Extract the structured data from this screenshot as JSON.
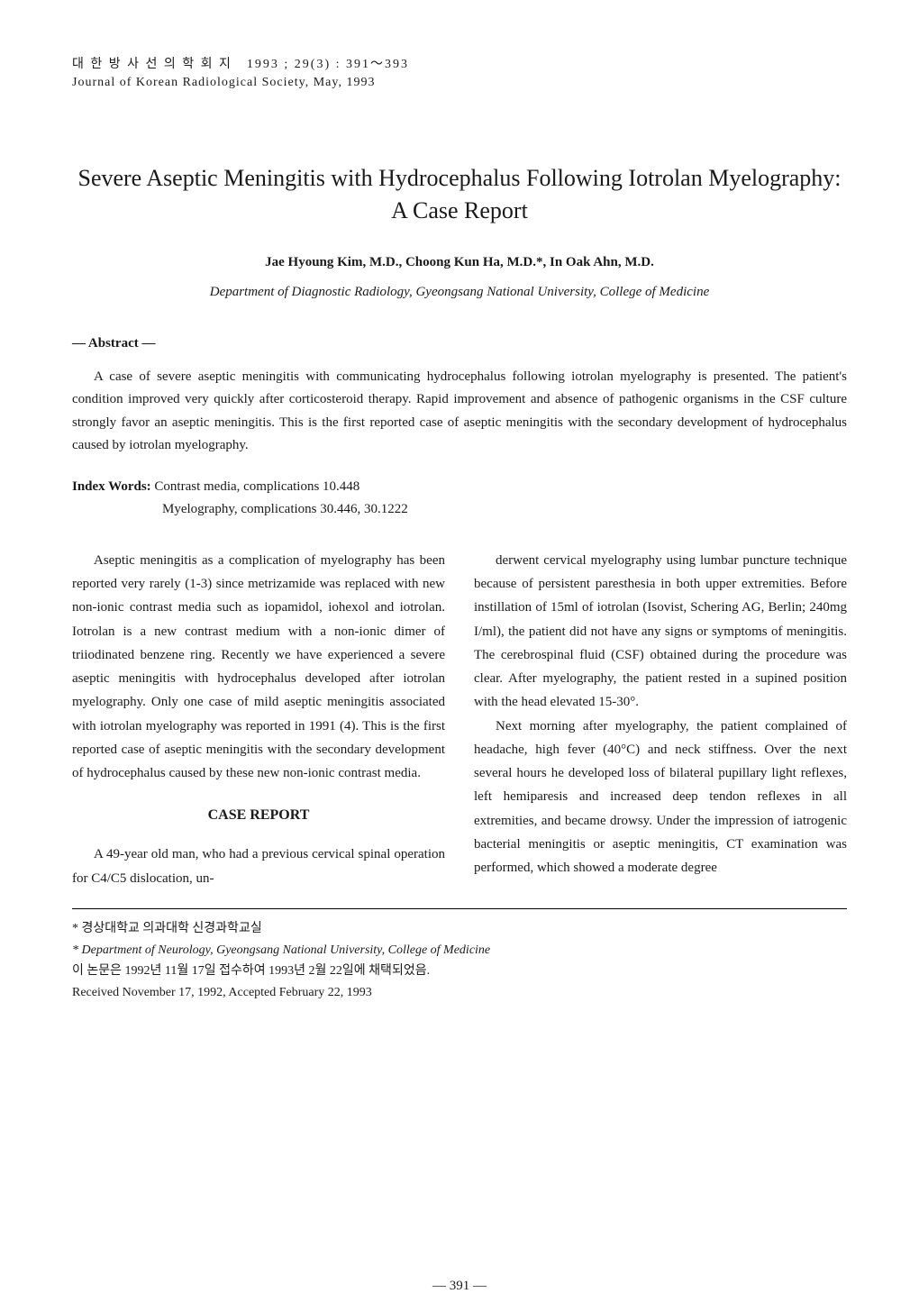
{
  "header": {
    "korean_line": "대 한 방 사 선 의 학 회 지　1993 ; 29(3) : 391～393",
    "english_line": "Journal of Korean Radiological Society, May, 1993"
  },
  "title": "Severe Aseptic Meningitis with Hydrocephalus Following Iotrolan Myelography: A Case Report",
  "authors": "Jae Hyoung Kim, M.D., Choong Kun Ha, M.D.*, In Oak Ahn, M.D.",
  "department": "Department of Diagnostic Radiology, Gyeongsang National University, College of Medicine",
  "abstract": {
    "label": "— Abstract —",
    "text": "A case of severe aseptic meningitis with communicating hydrocephalus following iotrolan myelography is presented. The patient's condition improved very quickly after corticosteroid therapy. Rapid improvement and absence of pathogenic organisms in the CSF culture strongly favor an aseptic meningitis. This is the first reported case of aseptic meningitis with the secondary development of hydrocephalus caused by iotrolan myelography."
  },
  "index_words": {
    "label": "Index Words:",
    "line1": " Contrast media, complications 10.448",
    "line2": "Myelography, complications 30.446, 30.1222"
  },
  "body": {
    "left_col": {
      "para1": "Aseptic meningitis as a complication of myelography has been reported very rarely (1-3) since metrizamide was replaced with new non-ionic contrast media such as iopamidol, iohexol and iotrolan. Iotrolan is a new contrast medium with a non-ionic dimer of triiodinated benzene ring. Recently we have experienced a severe aseptic meningitis with hydrocephalus developed after iotrolan myelography. Only one case of mild aseptic meningitis associated with iotrolan myelography was reported in 1991 (4). This is the first reported case of aseptic meningitis with the secondary development of hydrocephalus caused by these new non-ionic contrast media.",
      "section_heading": "CASE REPORT",
      "para2": "A 49-year old man, who had a previous cervical spinal operation for C4/C5 dislocation, un-"
    },
    "right_col": {
      "para1": "derwent cervical myelography using lumbar puncture technique because of persistent paresthesia in both upper extremities. Before instillation of 15ml of iotrolan (Isovist, Schering AG, Berlin; 240mg I/ml), the patient did not have any signs or symptoms of meningitis. The cerebrospinal fluid (CSF) obtained during the procedure was clear. After myelography, the patient rested in a supined position with the head elevated 15-30°.",
      "para2": "Next morning after myelography, the patient complained of headache, high fever (40°C) and neck stiffness. Over the next several hours he developed loss of bilateral pupillary light reflexes, left hemiparesis and increased deep tendon reflexes in all extremities, and became drowsy. Under the impression of iatrogenic bacterial meningitis or aseptic meningitis, CT examination was performed, which showed a moderate degree"
    }
  },
  "footnotes": {
    "line1": "* 경상대학교 의과대학 신경과학교실",
    "line2": "* Department of Neurology, Gyeongsang National University, College of Medicine",
    "line3": "이 논문은 1992년 11월 17일 접수하여 1993년 2월 22일에 채택되었음.",
    "line4": "Received November 17, 1992, Accepted February 22, 1993"
  },
  "page_number": "— 391 —",
  "styles": {
    "background_color": "#ffffff",
    "text_color": "#1a1a1a",
    "title_fontsize": 26,
    "body_fontsize": 15,
    "header_fontsize": 14,
    "footnote_fontsize": 14
  }
}
